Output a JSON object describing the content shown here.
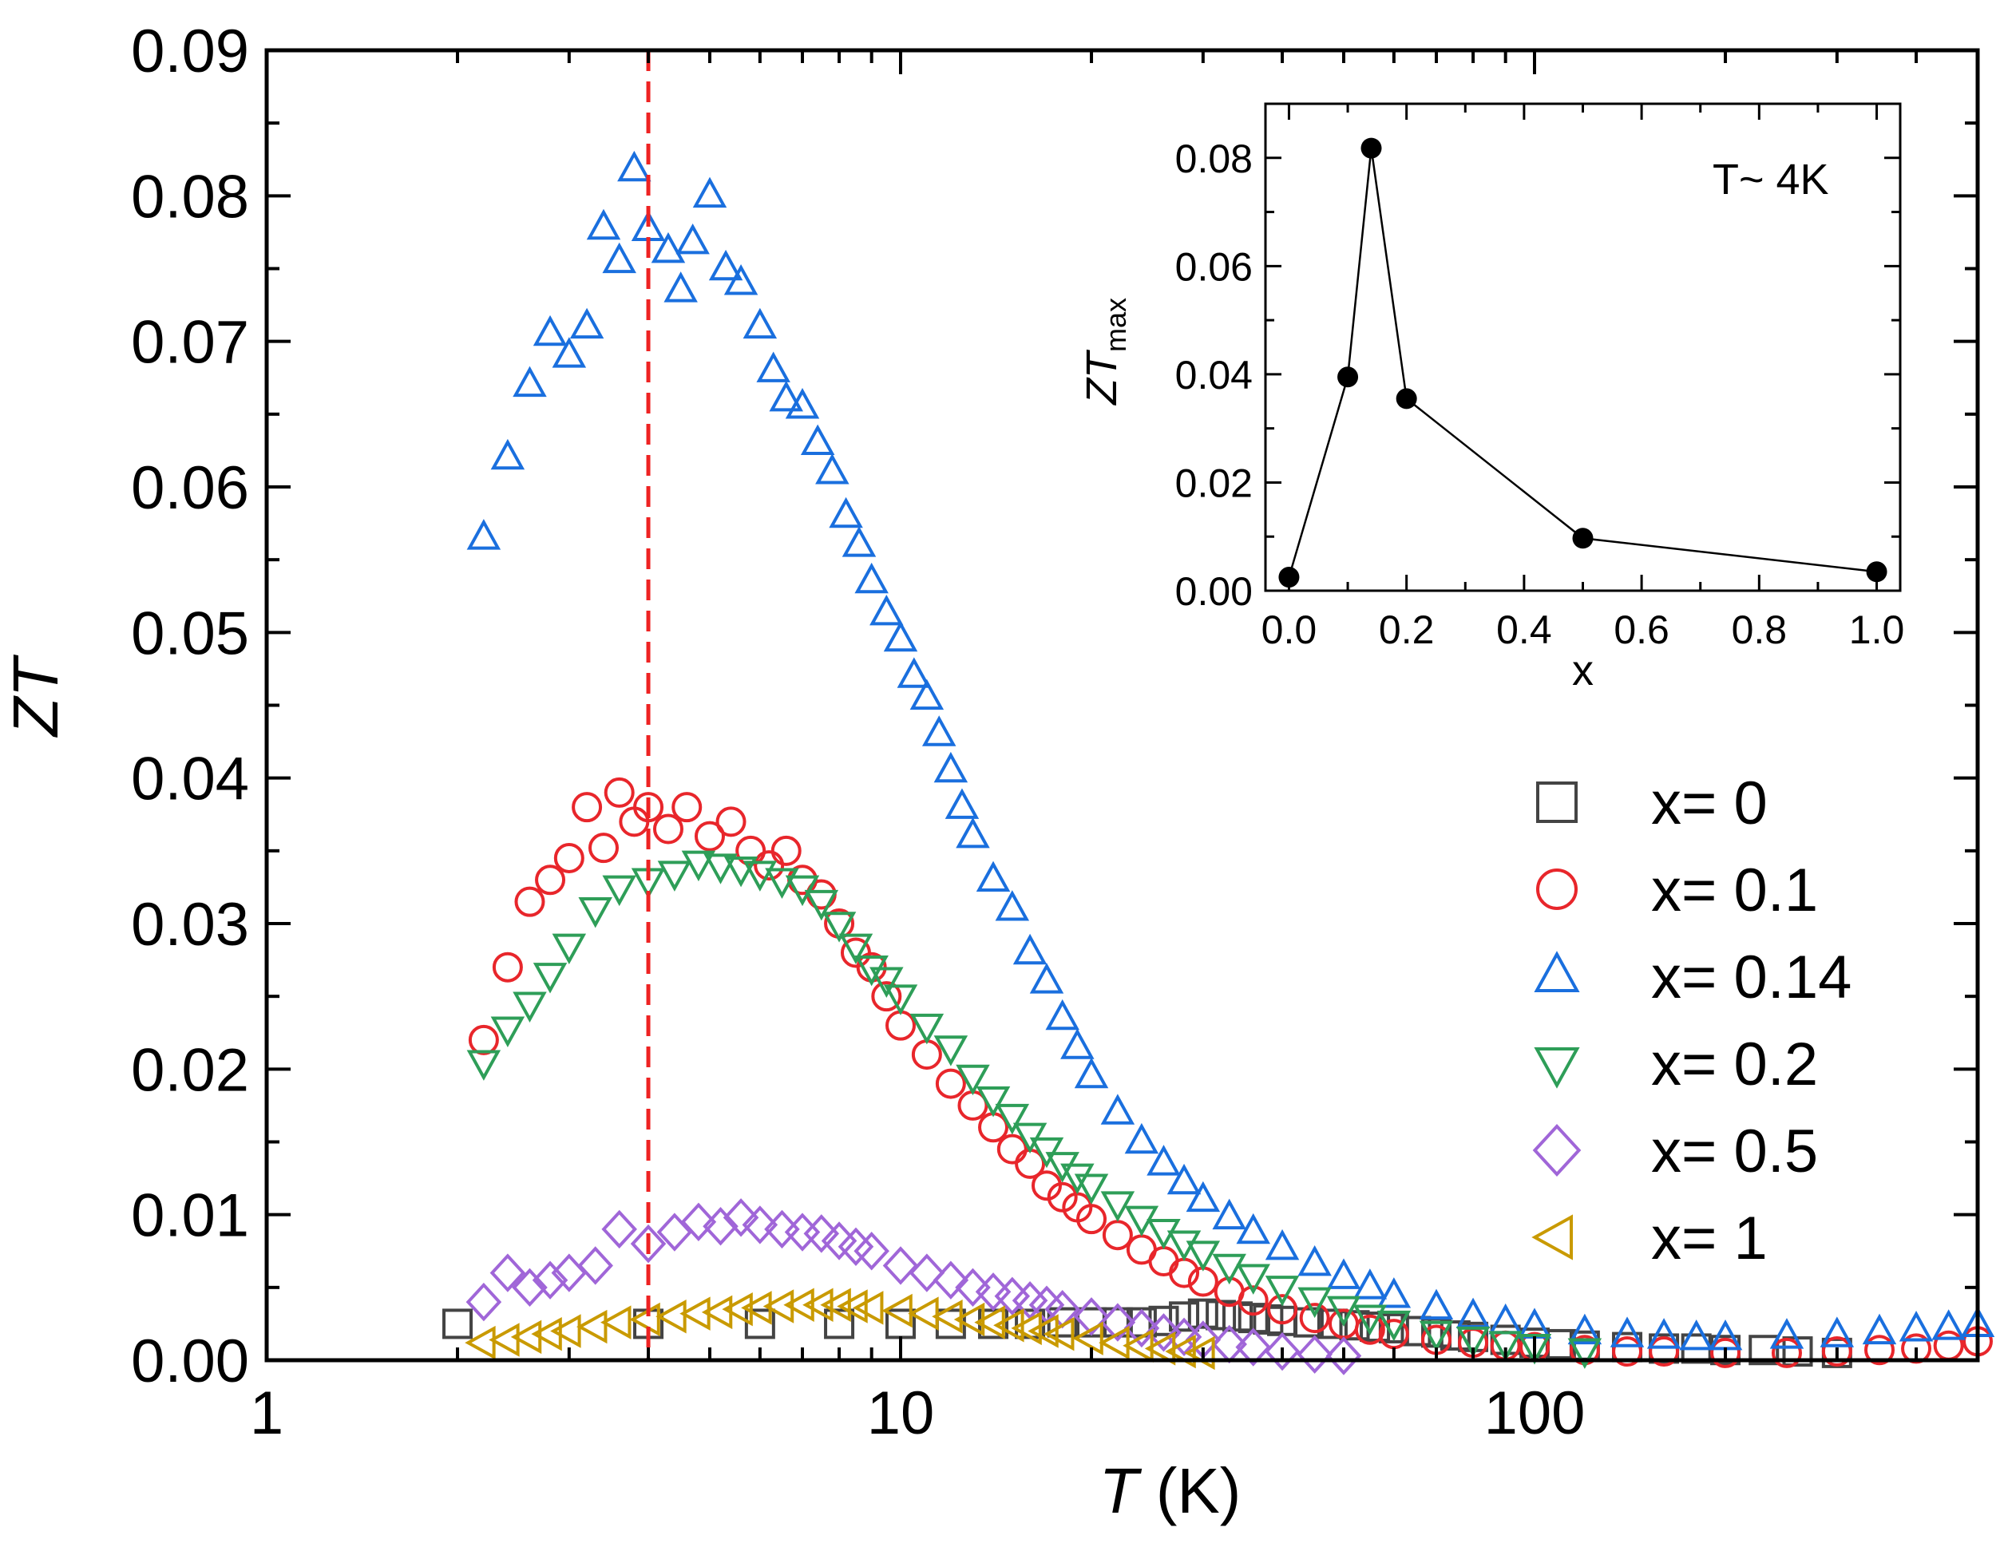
{
  "chart_data": [
    {
      "type": "scatter",
      "xscale": "log",
      "xlabel_italic": "T",
      "xlabel_unit": " (K)",
      "ylabel": "ZT",
      "xlim": [
        1,
        500
      ],
      "ylim": [
        0,
        0.09
      ],
      "x_ticks": [
        1,
        10,
        100
      ],
      "x_tick_labels": [
        "1",
        "10",
        "100"
      ],
      "y_ticks": [
        0,
        0.01,
        0.02,
        0.03,
        0.04,
        0.05,
        0.06,
        0.07,
        0.08,
        0.09
      ],
      "y_tick_labels": [
        "0.00",
        "0.01",
        "0.02",
        "0.03",
        "0.04",
        "0.05",
        "0.06",
        "0.07",
        "0.08",
        "0.09"
      ],
      "reference_line": {
        "x": 4,
        "style": "dashed",
        "color": "#ee2222"
      },
      "legend_position": "center-right",
      "series": [
        {
          "name": "x= 0",
          "marker": "square",
          "color": "#444444",
          "x": [
            2,
            4,
            6,
            8,
            10,
            12,
            14,
            16,
            18,
            20,
            22,
            24,
            26,
            28,
            30,
            32,
            34,
            36,
            38,
            40,
            44,
            48,
            52,
            56,
            60,
            65,
            70,
            75,
            80,
            90,
            100,
            110,
            120,
            140,
            160,
            180,
            200,
            230,
            260,
            300
          ],
          "y": [
            0.0025,
            0.0025,
            0.0025,
            0.0025,
            0.0025,
            0.0025,
            0.0025,
            0.0025,
            0.0026,
            0.0026,
            0.0026,
            0.0026,
            0.0027,
            0.003,
            0.0032,
            0.0031,
            0.003,
            0.0029,
            0.0028,
            0.0027,
            0.0026,
            0.0025,
            0.0024,
            0.0023,
            0.0022,
            0.002,
            0.0019,
            0.0017,
            0.0016,
            0.0014,
            0.0012,
            0.0011,
            0.001,
            0.0009,
            0.0008,
            0.0008,
            0.0007,
            0.0007,
            0.0006,
            0.0005
          ]
        },
        {
          "name": "x= 0.1",
          "marker": "circle",
          "color": "#e8262b",
          "x": [
            2.2,
            2.4,
            2.6,
            2.8,
            3.0,
            3.2,
            3.4,
            3.6,
            3.8,
            4.0,
            4.3,
            4.6,
            5.0,
            5.4,
            5.8,
            6.2,
            6.6,
            7.0,
            7.5,
            8.0,
            8.5,
            9.0,
            9.5,
            10,
            11,
            12,
            13,
            14,
            15,
            16,
            17,
            18,
            19,
            20,
            22,
            24,
            26,
            28,
            30,
            33,
            36,
            40,
            45,
            50,
            55,
            60,
            70,
            80,
            90,
            100,
            120,
            140,
            160,
            200,
            250,
            300,
            350,
            400,
            450,
            500
          ],
          "y": [
            0.022,
            0.027,
            0.0315,
            0.033,
            0.0345,
            0.038,
            0.0352,
            0.039,
            0.037,
            0.038,
            0.0365,
            0.038,
            0.036,
            0.037,
            0.035,
            0.034,
            0.035,
            0.033,
            0.032,
            0.03,
            0.028,
            0.027,
            0.025,
            0.023,
            0.021,
            0.019,
            0.0175,
            0.016,
            0.0145,
            0.0135,
            0.012,
            0.0112,
            0.0105,
            0.0097,
            0.0086,
            0.0076,
            0.0068,
            0.006,
            0.0054,
            0.0047,
            0.0041,
            0.0035,
            0.0029,
            0.0025,
            0.0021,
            0.0018,
            0.0014,
            0.0012,
            0.001,
            0.0009,
            0.0007,
            0.0006,
            0.0006,
            0.0005,
            0.0005,
            0.0006,
            0.0007,
            0.0008,
            0.001,
            0.0013
          ]
        },
        {
          "name": "x= 0.14",
          "marker": "triangle-up",
          "color": "#1a6fde",
          "x": [
            2.2,
            2.4,
            2.6,
            2.8,
            3.0,
            3.2,
            3.4,
            3.6,
            3.8,
            4.0,
            4.3,
            4.5,
            4.7,
            5.0,
            5.3,
            5.6,
            6.0,
            6.3,
            6.6,
            7.0,
            7.4,
            7.8,
            8.2,
            8.6,
            9.0,
            9.5,
            10,
            10.5,
            11,
            11.5,
            12,
            12.5,
            13,
            14,
            15,
            16,
            17,
            18,
            19,
            20,
            22,
            24,
            26,
            28,
            30,
            33,
            36,
            40,
            45,
            50,
            55,
            60,
            70,
            80,
            90,
            100,
            120,
            140,
            160,
            180,
            200,
            250,
            300,
            350,
            400,
            450,
            500
          ],
          "y": [
            0.0565,
            0.062,
            0.067,
            0.0705,
            0.069,
            0.071,
            0.0778,
            0.0755,
            0.0818,
            0.0777,
            0.0762,
            0.0735,
            0.0768,
            0.08,
            0.075,
            0.074,
            0.071,
            0.068,
            0.066,
            0.0655,
            0.063,
            0.061,
            0.058,
            0.056,
            0.0535,
            0.0513,
            0.0495,
            0.047,
            0.0455,
            0.043,
            0.0405,
            0.038,
            0.036,
            0.033,
            0.031,
            0.028,
            0.026,
            0.0235,
            0.0215,
            0.0195,
            0.017,
            0.015,
            0.0135,
            0.0122,
            0.011,
            0.0098,
            0.0088,
            0.0077,
            0.0066,
            0.0057,
            0.005,
            0.0044,
            0.0036,
            0.003,
            0.0026,
            0.0023,
            0.0019,
            0.0017,
            0.0016,
            0.0015,
            0.0015,
            0.0016,
            0.0017,
            0.0019,
            0.0021,
            0.0022,
            0.0024
          ]
        },
        {
          "name": "x= 0.2",
          "marker": "triangle-down",
          "color": "#2e9e58",
          "x": [
            2.2,
            2.4,
            2.6,
            2.8,
            3.0,
            3.3,
            3.6,
            4.0,
            4.4,
            4.8,
            5.2,
            5.6,
            6.0,
            6.5,
            7.0,
            7.5,
            8.0,
            8.5,
            9.0,
            9.5,
            10,
            11,
            12,
            13,
            14,
            15,
            16,
            17,
            18,
            19,
            20,
            22,
            24,
            26,
            28,
            30,
            33,
            36,
            40,
            45,
            50,
            55,
            60,
            70,
            80,
            90,
            100,
            120
          ],
          "y": [
            0.0205,
            0.0228,
            0.0245,
            0.0265,
            0.0285,
            0.031,
            0.0325,
            0.033,
            0.0335,
            0.0342,
            0.034,
            0.0338,
            0.0335,
            0.033,
            0.0325,
            0.0315,
            0.03,
            0.0285,
            0.027,
            0.0262,
            0.025,
            0.023,
            0.0215,
            0.0195,
            0.018,
            0.0168,
            0.0155,
            0.0145,
            0.0135,
            0.0127,
            0.012,
            0.0108,
            0.0098,
            0.0089,
            0.0081,
            0.0074,
            0.0065,
            0.0058,
            0.005,
            0.0042,
            0.0036,
            0.003,
            0.0026,
            0.0019,
            0.0015,
            0.0012,
            0.001,
            0.0007
          ]
        },
        {
          "name": "x= 0.5",
          "marker": "diamond",
          "color": "#a066d8",
          "x": [
            2.2,
            2.4,
            2.6,
            2.8,
            3.0,
            3.3,
            3.6,
            4.0,
            4.4,
            4.8,
            5.2,
            5.6,
            6.0,
            6.5,
            7.0,
            7.5,
            8.0,
            8.5,
            9.0,
            10,
            11,
            12,
            13,
            14,
            15,
            16,
            17,
            18,
            20,
            22,
            24,
            26,
            28,
            30,
            33,
            36,
            40,
            45,
            50
          ],
          "y": [
            0.004,
            0.006,
            0.005,
            0.0055,
            0.006,
            0.0065,
            0.009,
            0.008,
            0.0088,
            0.0095,
            0.0092,
            0.0098,
            0.0093,
            0.009,
            0.0088,
            0.0087,
            0.0082,
            0.0078,
            0.0075,
            0.0065,
            0.006,
            0.0055,
            0.005,
            0.0047,
            0.0044,
            0.0041,
            0.0038,
            0.0035,
            0.003,
            0.0026,
            0.0022,
            0.0019,
            0.0016,
            0.0014,
            0.0011,
            0.0009,
            0.0006,
            0.0004,
            0.0003
          ]
        },
        {
          "name": "x= 1",
          "marker": "triangle-left",
          "color": "#c99a00",
          "x": [
            2.2,
            2.4,
            2.6,
            2.8,
            3.0,
            3.3,
            3.6,
            4.0,
            4.4,
            4.8,
            5.2,
            5.6,
            6.0,
            6.5,
            7.0,
            7.5,
            8.0,
            8.5,
            9.0,
            10,
            11,
            12,
            13,
            14,
            15,
            16,
            17,
            18,
            20,
            22,
            24,
            26,
            28,
            30
          ],
          "y": [
            0.0012,
            0.0014,
            0.0016,
            0.0018,
            0.002,
            0.0023,
            0.0026,
            0.0028,
            0.003,
            0.0032,
            0.0033,
            0.0035,
            0.0036,
            0.0037,
            0.0038,
            0.0038,
            0.0038,
            0.0037,
            0.0036,
            0.0034,
            0.0032,
            0.003,
            0.0028,
            0.0026,
            0.0024,
            0.0022,
            0.002,
            0.0018,
            0.0015,
            0.0012,
            0.001,
            0.0008,
            0.0006,
            0.0005
          ]
        }
      ]
    },
    {
      "type": "line",
      "inset": true,
      "xlabel": "x",
      "ylabel_main": "ZT",
      "ylabel_sub": "max",
      "annotation": "T~ 4K",
      "xlim": [
        -0.04,
        1.04
      ],
      "ylim": [
        0,
        0.09
      ],
      "x_ticks": [
        0.0,
        0.2,
        0.4,
        0.6,
        0.8,
        1.0
      ],
      "x_tick_labels": [
        "0.0",
        "0.2",
        "0.4",
        "0.6",
        "0.8",
        "1.0"
      ],
      "y_ticks": [
        0.0,
        0.02,
        0.04,
        0.06,
        0.08
      ],
      "y_tick_labels": [
        "0.00",
        "0.02",
        "0.04",
        "0.06",
        "0.08"
      ],
      "x": [
        0,
        0.1,
        0.14,
        0.2,
        0.5,
        1.0
      ],
      "y": [
        0.0025,
        0.0395,
        0.0818,
        0.0355,
        0.0097,
        0.0035
      ]
    }
  ]
}
